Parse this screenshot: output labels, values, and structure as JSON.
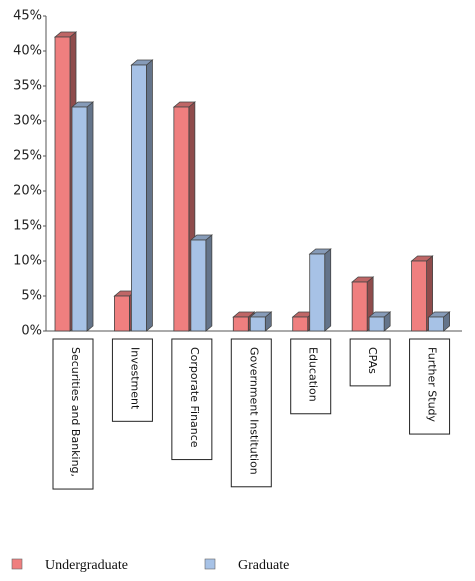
{
  "chart_data": {
    "type": "bar3d",
    "categories": [
      "Securities and Banking,",
      "Investment",
      "Corporate Finance",
      "Government Institution",
      "Education",
      "CPAs",
      "Further Study"
    ],
    "series": [
      {
        "name": "Undergraduate",
        "color": "#ef7f7f",
        "values": [
          42,
          5,
          32,
          2,
          2,
          7,
          10
        ]
      },
      {
        "name": "Graduate",
        "color": "#a7c2e6",
        "values": [
          32,
          38,
          13,
          2,
          11,
          2,
          2
        ]
      }
    ],
    "ylim": [
      0,
      45
    ],
    "yticks": [
      {
        "value": 0,
        "label": "0%"
      },
      {
        "value": 5,
        "label": "5%"
      },
      {
        "value": 10,
        "label": "10%"
      },
      {
        "value": 15,
        "label": "15%"
      },
      {
        "value": 20,
        "label": "20%"
      },
      {
        "value": 25,
        "label": "25%"
      },
      {
        "value": 30,
        "label": "30%"
      },
      {
        "value": 35,
        "label": "35%"
      },
      {
        "value": 40,
        "label": "40%"
      },
      {
        "value": 45,
        "label": "45%"
      }
    ]
  }
}
